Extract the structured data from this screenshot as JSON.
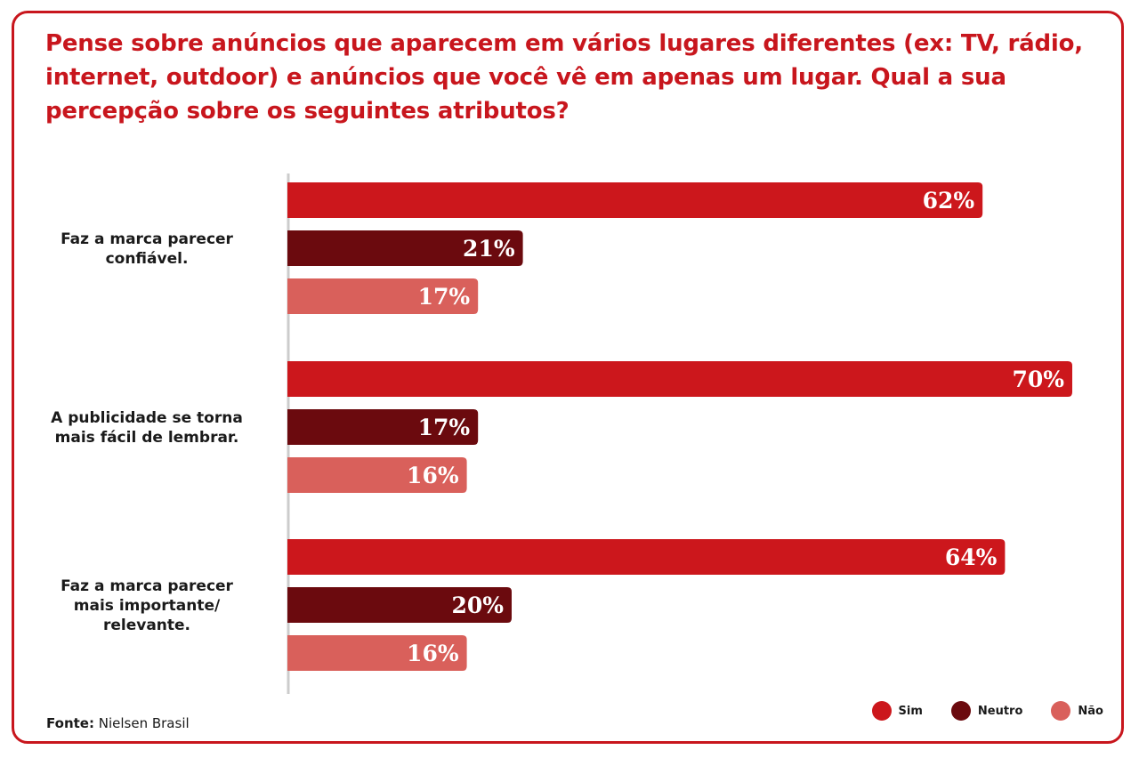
{
  "title": "Pense sobre anúncios que aparecem em vários lugares diferentes (ex: TV, rádio, internet, outdoor) e anúncios que você vê em apenas um lugar. Qual a sua percepção sobre os seguintes atributos?",
  "source": {
    "label": "Fonte:",
    "text": "Nielsen Brasil"
  },
  "colors": {
    "sim": "#cc171c",
    "neutro": "#6b0a0e",
    "nao": "#d9605b",
    "frame": "#c8161d",
    "axis": "#cccccc"
  },
  "chart_data": {
    "type": "bar",
    "orientation": "horizontal",
    "categories": [
      [
        "Faz a marca parecer",
        "confiável."
      ],
      [
        "A publicidade se torna",
        "mais fácil de lembrar."
      ],
      [
        "Faz a marca parecer",
        "mais importante/",
        "relevante."
      ]
    ],
    "series": [
      {
        "name": "Sim",
        "color_key": "sim",
        "values": [
          62,
          70,
          64
        ],
        "labels": [
          "62%",
          "70%",
          "64%"
        ]
      },
      {
        "name": "Neutro",
        "color_key": "neutro",
        "values": [
          21,
          17,
          20
        ],
        "labels": [
          "21%",
          "17%",
          "20%"
        ]
      },
      {
        "name": "Não",
        "color_key": "nao",
        "values": [
          17,
          16,
          16
        ],
        "labels": [
          "17%",
          "16%",
          "16%"
        ]
      }
    ],
    "xlim": [
      0,
      70
    ],
    "unit": "%",
    "legend": [
      "Sim",
      "Neutro",
      "Não"
    ],
    "legend_position": "bottom-right"
  }
}
